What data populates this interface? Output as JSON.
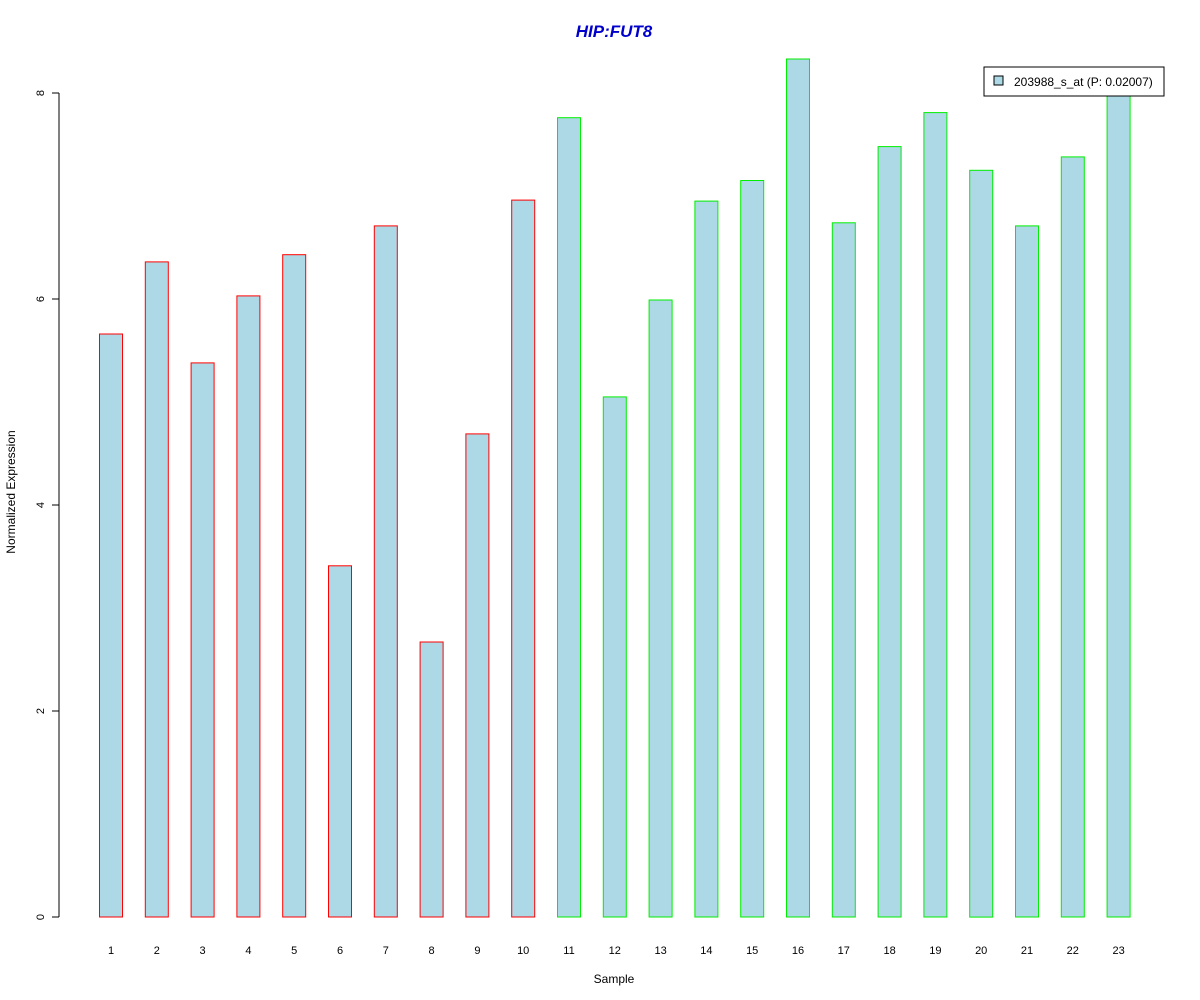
{
  "chart_data": {
    "type": "bar",
    "title": "HIP:FUT8",
    "title_color": "#0000CC",
    "xlabel": "Sample",
    "ylabel": "Normalized Expression",
    "categories": [
      "1",
      "2",
      "3",
      "4",
      "5",
      "6",
      "7",
      "8",
      "9",
      "10",
      "11",
      "12",
      "13",
      "14",
      "15",
      "16",
      "17",
      "18",
      "19",
      "20",
      "21",
      "22",
      "23"
    ],
    "series": [
      {
        "name": "203988_s_at (P: 0.02007)",
        "values": [
          5.66,
          6.36,
          5.38,
          6.03,
          6.43,
          3.41,
          6.71,
          2.67,
          4.69,
          6.96,
          7.76,
          5.05,
          5.99,
          6.95,
          7.15,
          8.33,
          6.74,
          7.48,
          7.81,
          7.25,
          6.71,
          7.38,
          8.0
        ]
      }
    ],
    "group_border_colors": [
      "#FF0000",
      "#FF0000",
      "#FF0000",
      "#FF0000",
      "#FF0000",
      "#FF0000",
      "#FF0000",
      "#FF0000",
      "#FF0000",
      "#FF0000",
      "#00EE00",
      "#00EE00",
      "#00EE00",
      "#00EE00",
      "#00EE00",
      "#00EE00",
      "#00EE00",
      "#00EE00",
      "#00EE00",
      "#00EE00",
      "#00EE00",
      "#00EE00",
      "#00EE00"
    ],
    "bar_fill": "#ADD8E6",
    "ylim": [
      0,
      8
    ],
    "yticks": [
      0,
      2,
      4,
      6,
      8
    ],
    "legend_position": "top-right",
    "grid": false
  }
}
